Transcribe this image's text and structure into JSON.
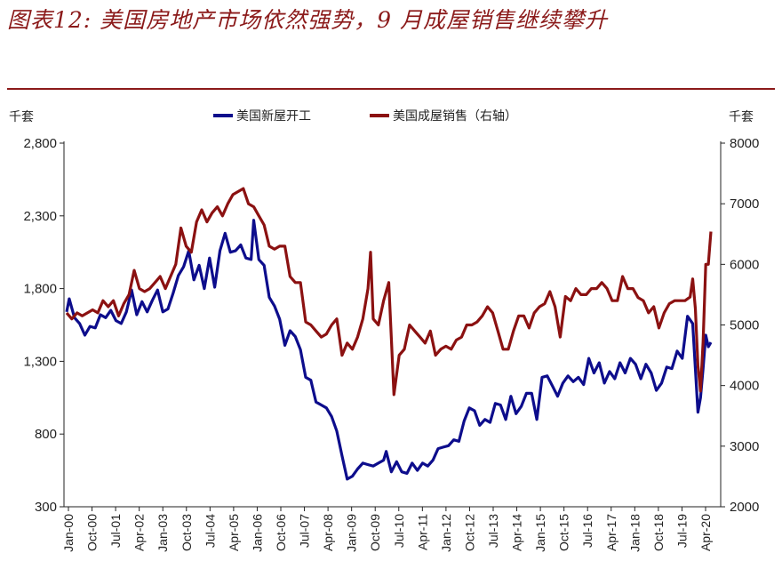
{
  "title": "图表12: 美国房地产市场依然强势，9 月成屋销售继续攀升",
  "chart_data": {
    "type": "line",
    "left_unit": "千套",
    "right_unit": "千套",
    "ylim_left": [
      300,
      2800
    ],
    "ylim_right": [
      2000,
      8000
    ],
    "left_ticks": [
      "2,800",
      "2,300",
      "1,800",
      "1,300",
      "800",
      "300"
    ],
    "right_ticks": [
      "8000",
      "7000",
      "6000",
      "5000",
      "4000",
      "3000",
      "2000"
    ],
    "x_ticks": [
      "Jan-00",
      "Oct-00",
      "Jul-01",
      "Apr-02",
      "Jan-03",
      "Oct-03",
      "Jul-04",
      "Apr-05",
      "Jan-06",
      "Oct-06",
      "Jul-07",
      "Apr-08",
      "Jan-09",
      "Oct-09",
      "Jul-10",
      "Apr-11",
      "Jan-12",
      "Oct-12",
      "Jul-13",
      "Apr-14",
      "Jan-15",
      "Oct-15",
      "Jul-16",
      "Apr-17",
      "Jan-18",
      "Oct-18",
      "Jul-19",
      "Apr-20"
    ],
    "series": [
      {
        "name": "美国新屋开工",
        "axis": "left",
        "color": "#0d0d8c",
        "points": [
          [
            "2000-01",
            1640
          ],
          [
            "2000-02",
            1730
          ],
          [
            "2000-04",
            1600
          ],
          [
            "2000-06",
            1560
          ],
          [
            "2000-08",
            1480
          ],
          [
            "2000-10",
            1540
          ],
          [
            "2000-12",
            1530
          ],
          [
            "2001-02",
            1620
          ],
          [
            "2001-04",
            1600
          ],
          [
            "2001-06",
            1650
          ],
          [
            "2001-08",
            1580
          ],
          [
            "2001-10",
            1560
          ],
          [
            "2001-12",
            1640
          ],
          [
            "2002-02",
            1790
          ],
          [
            "2002-04",
            1620
          ],
          [
            "2002-06",
            1710
          ],
          [
            "2002-08",
            1640
          ],
          [
            "2002-10",
            1720
          ],
          [
            "2002-12",
            1790
          ],
          [
            "2003-02",
            1640
          ],
          [
            "2003-04",
            1660
          ],
          [
            "2003-06",
            1770
          ],
          [
            "2003-08",
            1890
          ],
          [
            "2003-10",
            1950
          ],
          [
            "2003-12",
            2060
          ],
          [
            "2004-02",
            1860
          ],
          [
            "2004-04",
            1960
          ],
          [
            "2004-06",
            1800
          ],
          [
            "2004-08",
            2010
          ],
          [
            "2004-10",
            1810
          ],
          [
            "2004-12",
            2060
          ],
          [
            "2005-02",
            2180
          ],
          [
            "2005-04",
            2050
          ],
          [
            "2005-06",
            2060
          ],
          [
            "2005-08",
            2100
          ],
          [
            "2005-10",
            2010
          ],
          [
            "2005-12",
            2000
          ],
          [
            "2006-01",
            2270
          ],
          [
            "2006-03",
            2000
          ],
          [
            "2006-05",
            1960
          ],
          [
            "2006-07",
            1740
          ],
          [
            "2006-09",
            1680
          ],
          [
            "2006-11",
            1590
          ],
          [
            "2007-01",
            1410
          ],
          [
            "2007-03",
            1510
          ],
          [
            "2007-05",
            1470
          ],
          [
            "2007-07",
            1380
          ],
          [
            "2007-09",
            1190
          ],
          [
            "2007-11",
            1170
          ],
          [
            "2008-01",
            1020
          ],
          [
            "2008-03",
            1000
          ],
          [
            "2008-05",
            980
          ],
          [
            "2008-07",
            920
          ],
          [
            "2008-09",
            820
          ],
          [
            "2008-11",
            650
          ],
          [
            "2009-01",
            490
          ],
          [
            "2009-03",
            510
          ],
          [
            "2009-05",
            560
          ],
          [
            "2009-07",
            600
          ],
          [
            "2009-09",
            590
          ],
          [
            "2009-11",
            580
          ],
          [
            "2010-01",
            600
          ],
          [
            "2010-03",
            620
          ],
          [
            "2010-04",
            680
          ],
          [
            "2010-06",
            540
          ],
          [
            "2010-08",
            610
          ],
          [
            "2010-10",
            540
          ],
          [
            "2010-12",
            530
          ],
          [
            "2011-02",
            600
          ],
          [
            "2011-04",
            550
          ],
          [
            "2011-06",
            600
          ],
          [
            "2011-08",
            580
          ],
          [
            "2011-10",
            620
          ],
          [
            "2011-12",
            700
          ],
          [
            "2012-02",
            710
          ],
          [
            "2012-04",
            720
          ],
          [
            "2012-06",
            760
          ],
          [
            "2012-08",
            750
          ],
          [
            "2012-10",
            890
          ],
          [
            "2012-12",
            980
          ],
          [
            "2013-02",
            960
          ],
          [
            "2013-04",
            860
          ],
          [
            "2013-06",
            900
          ],
          [
            "2013-08",
            880
          ],
          [
            "2013-10",
            1010
          ],
          [
            "2013-12",
            1000
          ],
          [
            "2014-02",
            900
          ],
          [
            "2014-04",
            1060
          ],
          [
            "2014-06",
            940
          ],
          [
            "2014-08",
            990
          ],
          [
            "2014-10",
            1080
          ],
          [
            "2014-12",
            1080
          ],
          [
            "2015-02",
            900
          ],
          [
            "2015-04",
            1190
          ],
          [
            "2015-06",
            1200
          ],
          [
            "2015-08",
            1130
          ],
          [
            "2015-10",
            1060
          ],
          [
            "2015-12",
            1150
          ],
          [
            "2016-02",
            1200
          ],
          [
            "2016-04",
            1160
          ],
          [
            "2016-06",
            1190
          ],
          [
            "2016-08",
            1140
          ],
          [
            "2016-10",
            1320
          ],
          [
            "2016-12",
            1220
          ],
          [
            "2017-02",
            1290
          ],
          [
            "2017-04",
            1150
          ],
          [
            "2017-06",
            1230
          ],
          [
            "2017-08",
            1180
          ],
          [
            "2017-10",
            1290
          ],
          [
            "2017-12",
            1220
          ],
          [
            "2018-02",
            1320
          ],
          [
            "2018-04",
            1280
          ],
          [
            "2018-06",
            1180
          ],
          [
            "2018-08",
            1280
          ],
          [
            "2018-10",
            1220
          ],
          [
            "2018-12",
            1100
          ],
          [
            "2019-02",
            1150
          ],
          [
            "2019-04",
            1260
          ],
          [
            "2019-06",
            1250
          ],
          [
            "2019-08",
            1370
          ],
          [
            "2019-10",
            1320
          ],
          [
            "2019-12",
            1610
          ],
          [
            "2020-02",
            1560
          ],
          [
            "2020-04",
            950
          ],
          [
            "2020-05",
            1050
          ],
          [
            "2020-06",
            1250
          ],
          [
            "2020-07",
            1480
          ],
          [
            "2020-08",
            1400
          ],
          [
            "2020-09",
            1430
          ]
        ]
      },
      {
        "name": "美国成屋销售（右轴）",
        "axis": "right",
        "color": "#8b1111",
        "points": [
          [
            "2000-01",
            5200
          ],
          [
            "2000-03",
            5100
          ],
          [
            "2000-05",
            5200
          ],
          [
            "2000-07",
            5150
          ],
          [
            "2000-09",
            5200
          ],
          [
            "2000-11",
            5250
          ],
          [
            "2001-01",
            5200
          ],
          [
            "2001-03",
            5400
          ],
          [
            "2001-05",
            5300
          ],
          [
            "2001-07",
            5400
          ],
          [
            "2001-09",
            5150
          ],
          [
            "2001-11",
            5350
          ],
          [
            "2002-01",
            5500
          ],
          [
            "2002-03",
            5900
          ],
          [
            "2002-05",
            5600
          ],
          [
            "2002-07",
            5550
          ],
          [
            "2002-09",
            5600
          ],
          [
            "2002-11",
            5700
          ],
          [
            "2003-01",
            5800
          ],
          [
            "2003-03",
            5600
          ],
          [
            "2003-05",
            5800
          ],
          [
            "2003-07",
            6000
          ],
          [
            "2003-09",
            6600
          ],
          [
            "2003-11",
            6300
          ],
          [
            "2004-01",
            6200
          ],
          [
            "2004-03",
            6700
          ],
          [
            "2004-05",
            6900
          ],
          [
            "2004-07",
            6700
          ],
          [
            "2004-09",
            6850
          ],
          [
            "2004-11",
            6950
          ],
          [
            "2005-01",
            6800
          ],
          [
            "2005-03",
            7000
          ],
          [
            "2005-05",
            7150
          ],
          [
            "2005-07",
            7200
          ],
          [
            "2005-09",
            7250
          ],
          [
            "2005-11",
            7000
          ],
          [
            "2006-01",
            6950
          ],
          [
            "2006-03",
            6800
          ],
          [
            "2006-05",
            6650
          ],
          [
            "2006-07",
            6300
          ],
          [
            "2006-09",
            6250
          ],
          [
            "2006-11",
            6300
          ],
          [
            "2007-01",
            6300
          ],
          [
            "2007-03",
            5800
          ],
          [
            "2007-05",
            5700
          ],
          [
            "2007-07",
            5700
          ],
          [
            "2007-09",
            5050
          ],
          [
            "2007-11",
            5000
          ],
          [
            "2008-01",
            4900
          ],
          [
            "2008-03",
            4800
          ],
          [
            "2008-05",
            4850
          ],
          [
            "2008-07",
            5000
          ],
          [
            "2008-09",
            5100
          ],
          [
            "2008-11",
            4500
          ],
          [
            "2009-01",
            4700
          ],
          [
            "2009-03",
            4600
          ],
          [
            "2009-05",
            4800
          ],
          [
            "2009-07",
            5100
          ],
          [
            "2009-09",
            5600
          ],
          [
            "2009-10",
            6200
          ],
          [
            "2009-11",
            5100
          ],
          [
            "2010-01",
            5000
          ],
          [
            "2010-03",
            5400
          ],
          [
            "2010-05",
            5700
          ],
          [
            "2010-07",
            3850
          ],
          [
            "2010-09",
            4500
          ],
          [
            "2010-11",
            4600
          ],
          [
            "2011-01",
            5000
          ],
          [
            "2011-03",
            4900
          ],
          [
            "2011-05",
            4800
          ],
          [
            "2011-07",
            4700
          ],
          [
            "2011-09",
            4900
          ],
          [
            "2011-11",
            4500
          ],
          [
            "2012-01",
            4600
          ],
          [
            "2012-03",
            4650
          ],
          [
            "2012-05",
            4600
          ],
          [
            "2012-07",
            4750
          ],
          [
            "2012-09",
            4800
          ],
          [
            "2012-11",
            5000
          ],
          [
            "2013-01",
            5000
          ],
          [
            "2013-03",
            5050
          ],
          [
            "2013-05",
            5150
          ],
          [
            "2013-07",
            5300
          ],
          [
            "2013-09",
            5200
          ],
          [
            "2013-11",
            4900
          ],
          [
            "2014-01",
            4600
          ],
          [
            "2014-03",
            4600
          ],
          [
            "2014-05",
            4900
          ],
          [
            "2014-07",
            5150
          ],
          [
            "2014-09",
            5150
          ],
          [
            "2014-11",
            4950
          ],
          [
            "2015-01",
            5200
          ],
          [
            "2015-03",
            5300
          ],
          [
            "2015-05",
            5350
          ],
          [
            "2015-07",
            5550
          ],
          [
            "2015-09",
            5300
          ],
          [
            "2015-11",
            4800
          ],
          [
            "2016-01",
            5470
          ],
          [
            "2016-03",
            5400
          ],
          [
            "2016-05",
            5600
          ],
          [
            "2016-07",
            5500
          ],
          [
            "2016-09",
            5500
          ],
          [
            "2016-11",
            5600
          ],
          [
            "2017-01",
            5600
          ],
          [
            "2017-03",
            5700
          ],
          [
            "2017-05",
            5600
          ],
          [
            "2017-07",
            5400
          ],
          [
            "2017-09",
            5400
          ],
          [
            "2017-11",
            5800
          ],
          [
            "2018-01",
            5600
          ],
          [
            "2018-03",
            5600
          ],
          [
            "2018-05",
            5450
          ],
          [
            "2018-07",
            5400
          ],
          [
            "2018-09",
            5200
          ],
          [
            "2018-11",
            5300
          ],
          [
            "2019-01",
            4950
          ],
          [
            "2019-03",
            5200
          ],
          [
            "2019-05",
            5350
          ],
          [
            "2019-07",
            5400
          ],
          [
            "2019-09",
            5400
          ],
          [
            "2019-11",
            5400
          ],
          [
            "2020-01",
            5460
          ],
          [
            "2020-02",
            5760
          ],
          [
            "2020-03",
            5270
          ],
          [
            "2020-04",
            4330
          ],
          [
            "2020-05",
            3910
          ],
          [
            "2020-06",
            4720
          ],
          [
            "2020-07",
            6000
          ],
          [
            "2020-08",
            6000
          ],
          [
            "2020-09",
            6540
          ]
        ]
      }
    ]
  }
}
